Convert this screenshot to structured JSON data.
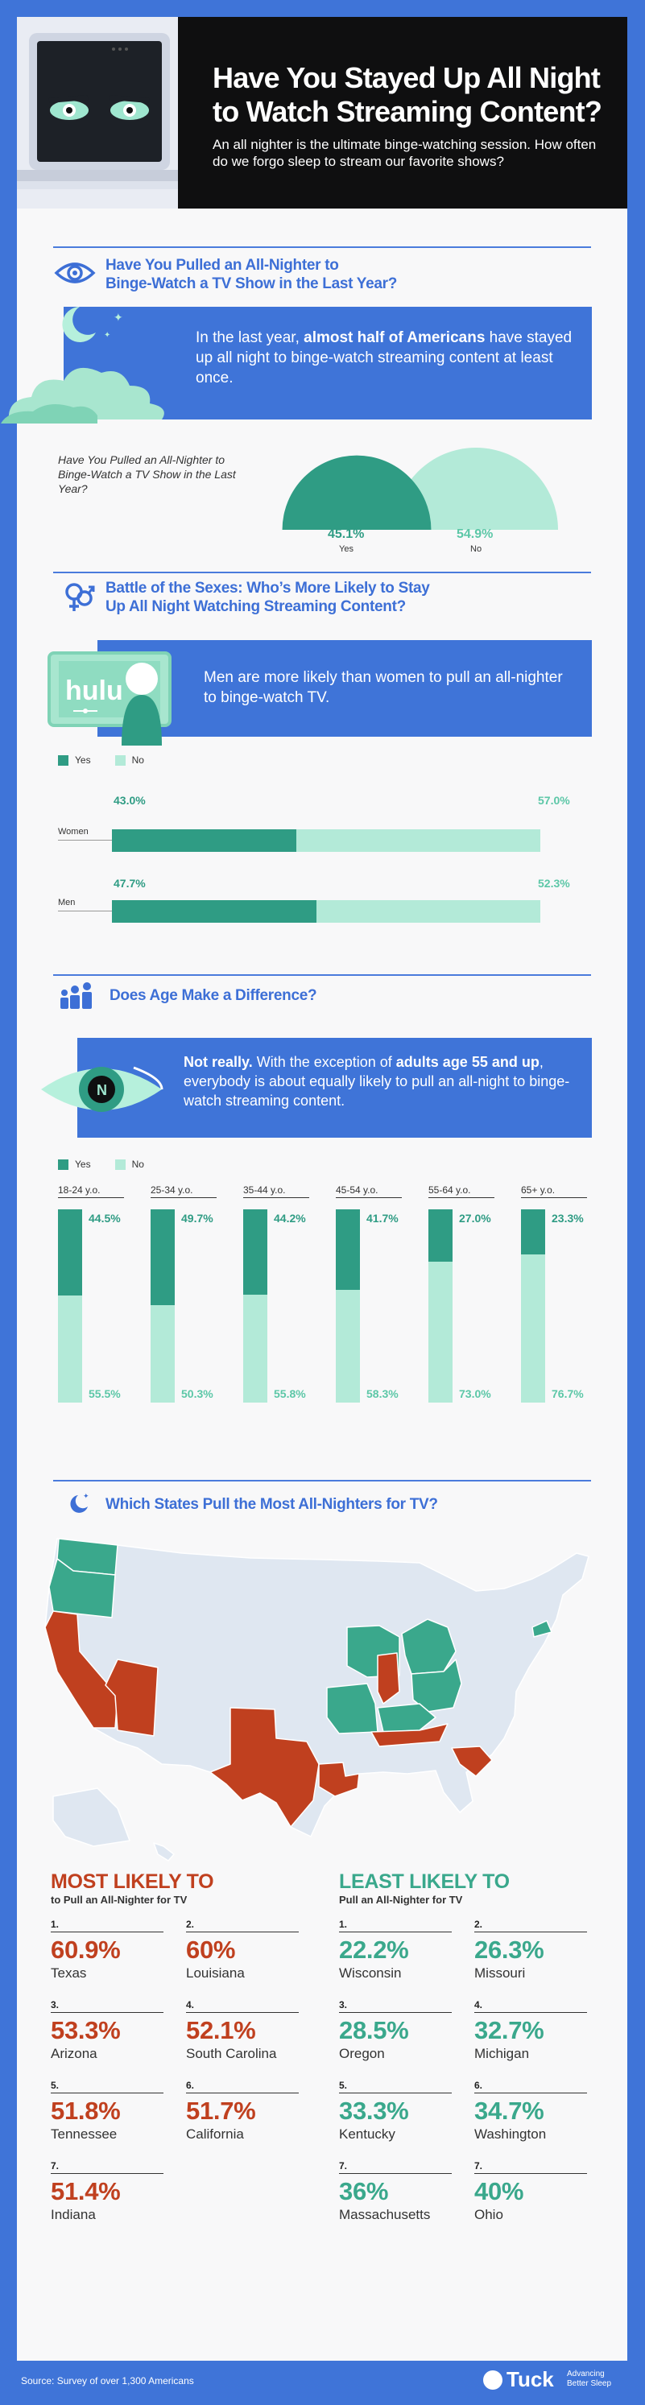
{
  "header": {
    "title": "Have You Stayed Up All Night to Watch Streaming Content?",
    "subtitle": "An all nighter is the ultimate binge-watching session. How often do we forgo sleep to stream our favorite shows?"
  },
  "section1": {
    "title_line1": "Have You Pulled an All-Nighter to",
    "title_line2": "Binge-Watch a TV Show in the Last Year?",
    "callout_pre": "In the last year, ",
    "callout_bold": "almost half of Americans",
    "callout_post": " have stayed up all night to binge-watch streaming content at least once.",
    "chart_question": "Have You Pulled an All-Nighter to Binge-Watch a TV Show in the Last Year?",
    "yes_value": "45.1%",
    "yes_label": "Yes",
    "no_value": "54.9%",
    "no_label": "No"
  },
  "section2": {
    "title_line1": "Battle of the Sexes: Who’s More Likely to Stay",
    "title_line2": "Up All Night Watching Streaming Content?",
    "logo_text": "hulu",
    "callout": "Men are more likely than women to pull an all-nighter to binge-watch TV.",
    "legend_yes": "Yes",
    "legend_no": "No",
    "rows": [
      {
        "label": "Women",
        "yes": "43.0%",
        "no": "57.0%"
      },
      {
        "label": "Men",
        "yes": "47.7%",
        "no": "52.3%"
      }
    ]
  },
  "section3": {
    "title": "Does Age Make a Difference?",
    "callout_bold1": "Not really.",
    "callout_mid": " With the exception of ",
    "callout_bold2": "adults age 55 and up",
    "callout_post": ", everybody is about equally likely to pull an all-night to binge-watch streaming content.",
    "legend_yes": "Yes",
    "legend_no": "No",
    "groups": [
      {
        "label": "18-24 y.o.",
        "yes": "44.5%",
        "no": "55.5%"
      },
      {
        "label": "25-34 y.o.",
        "yes": "49.7%",
        "no": "50.3%"
      },
      {
        "label": "35-44 y.o.",
        "yes": "44.2%",
        "no": "55.8%"
      },
      {
        "label": "45-54 y.o.",
        "yes": "41.7%",
        "no": "58.3%"
      },
      {
        "label": "55-64 y.o.",
        "yes": "27.0%",
        "no": "73.0%"
      },
      {
        "label": "65+ y.o.",
        "yes": "23.3%",
        "no": "76.7%"
      }
    ]
  },
  "section4": {
    "title": "Which States Pull the Most All-Nighters for TV?"
  },
  "most": {
    "heading": "MOST LIKELY TO",
    "sub": "to Pull an All-Nighter for TV",
    "items": [
      {
        "rank": "1.",
        "value": "60.9%",
        "state": "Texas"
      },
      {
        "rank": "2.",
        "value": "60%",
        "state": "Louisiana"
      },
      {
        "rank": "3.",
        "value": "53.3%",
        "state": "Arizona"
      },
      {
        "rank": "4.",
        "value": "52.1%",
        "state": "South Carolina"
      },
      {
        "rank": "5.",
        "value": "51.8%",
        "state": "Tennessee"
      },
      {
        "rank": "6.",
        "value": "51.7%",
        "state": "California"
      },
      {
        "rank": "7.",
        "value": "51.4%",
        "state": "Indiana"
      }
    ]
  },
  "least": {
    "heading": "LEAST LIKELY TO",
    "sub": "Pull an All-Nighter for TV",
    "items": [
      {
        "rank": "1.",
        "value": "22.2%",
        "state": "Wisconsin"
      },
      {
        "rank": "2.",
        "value": "26.3%",
        "state": "Missouri"
      },
      {
        "rank": "3.",
        "value": "28.5%",
        "state": "Oregon"
      },
      {
        "rank": "4.",
        "value": "32.7%",
        "state": "Michigan"
      },
      {
        "rank": "5.",
        "value": "33.3%",
        "state": "Kentucky"
      },
      {
        "rank": "6.",
        "value": "34.7%",
        "state": "Washington"
      },
      {
        "rank": "7.",
        "value": "36%",
        "state": "Massachusetts"
      },
      {
        "rank": "7.",
        "value": "40%",
        "state": "Ohio"
      }
    ]
  },
  "footer": {
    "source": "Source: Survey of over 1,300 Americans",
    "brand": "Tuck",
    "tagline_line1": "Advancing",
    "tagline_line2": "Better Sleep"
  },
  "colors": {
    "blue": "#3f74d8",
    "yes": "#2f9c84",
    "no": "#b3ead8",
    "most": "#c0401f",
    "least": "#3aa88c",
    "map_base": "#dfe7f1"
  },
  "chart_data": [
    {
      "type": "pie",
      "title": "Have You Pulled an All-Nighter to Binge-Watch a TV Show in the Last Year?",
      "categories": [
        "Yes",
        "No"
      ],
      "values": [
        45.1,
        54.9
      ]
    },
    {
      "type": "bar",
      "categories": [
        "Women",
        "Men"
      ],
      "series": [
        {
          "name": "Yes",
          "values": [
            43.0,
            47.7
          ]
        },
        {
          "name": "No",
          "values": [
            57.0,
            52.3
          ]
        }
      ],
      "stacked": true,
      "orientation": "horizontal",
      "legend": "top-left"
    },
    {
      "type": "bar",
      "categories": [
        "18-24 y.o.",
        "25-34 y.o.",
        "35-44 y.o.",
        "45-54 y.o.",
        "55-64 y.o.",
        "65+ y.o."
      ],
      "series": [
        {
          "name": "Yes",
          "values": [
            44.5,
            49.7,
            44.2,
            41.7,
            27.0,
            23.3
          ]
        },
        {
          "name": "No",
          "values": [
            55.5,
            50.3,
            55.8,
            58.3,
            73.0,
            76.7
          ]
        }
      ],
      "stacked": true,
      "orientation": "vertical",
      "legend": "top-left"
    }
  ]
}
